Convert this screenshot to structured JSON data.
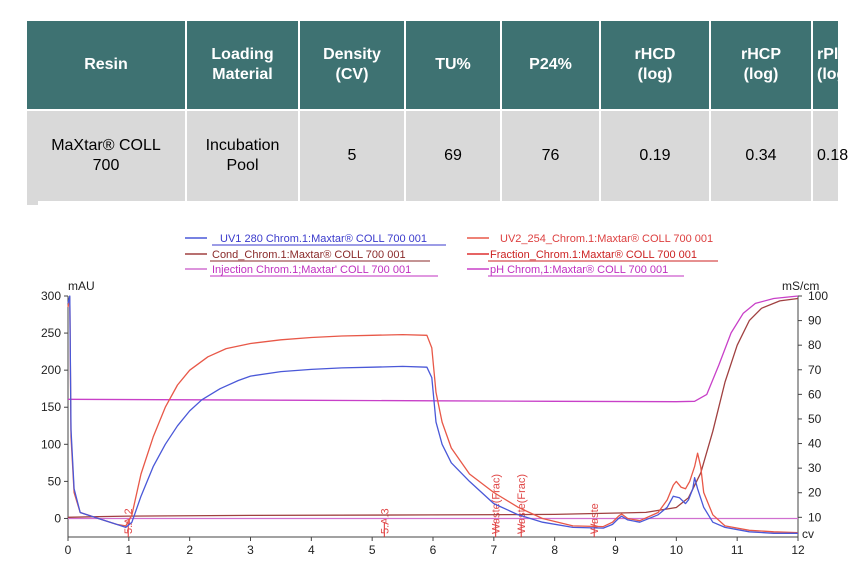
{
  "table": {
    "headers": [
      "Resin",
      "Loading Material",
      "Density (CV)",
      "TU%",
      "P24%",
      "rHCD (log)",
      "rHCP (log)",
      "rPlasmid (log)"
    ],
    "header_lines": [
      [
        "Resin"
      ],
      [
        "Loading",
        "Material"
      ],
      [
        "Density",
        "(CV)"
      ],
      [
        "TU%"
      ],
      [
        "P24%"
      ],
      [
        "rHCD",
        "(log)"
      ],
      [
        "rHCP",
        "(log)"
      ],
      [
        "rPlasmid",
        "(log)"
      ]
    ],
    "rows": [
      {
        "resin_lines": [
          "MaXtar® COLL",
          "700"
        ],
        "loading_lines": [
          "Incubation",
          "Pool"
        ],
        "density": "5",
        "tu": "69",
        "p24": "76",
        "rhcd": "0.19",
        "rhcp": "0.34",
        "rplasmid": "0.18"
      }
    ]
  },
  "chart_data": {
    "type": "line",
    "title": "",
    "xlabel": "cv",
    "ylabel_left": "mAU",
    "ylabel_right": "mS/cm",
    "xlim": [
      0,
      12
    ],
    "ylim_left": [
      -25,
      300
    ],
    "ylim_right": [
      2,
      100
    ],
    "x_ticks": [
      "0",
      "1",
      "2",
      "3",
      "4",
      "5",
      "6",
      "7",
      "8",
      "9",
      "10",
      "11",
      "12"
    ],
    "y_left_ticks": [
      "0",
      "50",
      "100",
      "150",
      "200",
      "250",
      "300"
    ],
    "y_right_ticks": [
      "10",
      "20",
      "30",
      "40",
      "50",
      "60",
      "70",
      "80",
      "90",
      "100"
    ],
    "legend_placement": "top",
    "series": [
      {
        "name": "UV1 280 Chrom.1:Maxtar® COLL 700 001",
        "color": "#4a58d8",
        "axis": "left",
        "points": [
          [
            0,
            290
          ],
          [
            0.03,
            300
          ],
          [
            0.05,
            120
          ],
          [
            0.1,
            40
          ],
          [
            0.2,
            8
          ],
          [
            0.5,
            0
          ],
          [
            0.8,
            -8
          ],
          [
            0.95,
            -12
          ],
          [
            1.05,
            -5
          ],
          [
            1.2,
            30
          ],
          [
            1.4,
            70
          ],
          [
            1.6,
            100
          ],
          [
            1.8,
            125
          ],
          [
            2.0,
            145
          ],
          [
            2.2,
            160
          ],
          [
            2.5,
            175
          ],
          [
            2.8,
            186
          ],
          [
            3.0,
            192
          ],
          [
            3.5,
            198
          ],
          [
            4.0,
            201
          ],
          [
            4.5,
            203
          ],
          [
            5.0,
            204
          ],
          [
            5.5,
            205
          ],
          [
            5.9,
            204
          ],
          [
            5.98,
            190
          ],
          [
            6.05,
            130
          ],
          [
            6.15,
            100
          ],
          [
            6.3,
            75
          ],
          [
            6.6,
            50
          ],
          [
            7.0,
            20
          ],
          [
            7.4,
            5
          ],
          [
            7.8,
            -5
          ],
          [
            8.3,
            -12
          ],
          [
            8.8,
            -13
          ],
          [
            8.95,
            -8
          ],
          [
            9.05,
            0
          ],
          [
            9.1,
            3
          ],
          [
            9.2,
            -2
          ],
          [
            9.4,
            -5
          ],
          [
            9.7,
            5
          ],
          [
            9.85,
            15
          ],
          [
            9.95,
            30
          ],
          [
            10.05,
            28
          ],
          [
            10.15,
            20
          ],
          [
            10.2,
            25
          ],
          [
            10.27,
            40
          ],
          [
            10.3,
            55
          ],
          [
            10.35,
            40
          ],
          [
            10.45,
            15
          ],
          [
            10.6,
            -5
          ],
          [
            10.8,
            -12
          ],
          [
            11.2,
            -18
          ],
          [
            11.6,
            -20
          ],
          [
            12,
            -20
          ]
        ]
      },
      {
        "name": "UV2_254_Chrom.1:Maxtar® COLL 700 001",
        "color": "#e85848",
        "axis": "left",
        "points": [
          [
            0,
            285
          ],
          [
            0.03,
            298
          ],
          [
            0.05,
            110
          ],
          [
            0.1,
            35
          ],
          [
            0.2,
            8
          ],
          [
            0.5,
            0
          ],
          [
            0.8,
            -8
          ],
          [
            0.95,
            -10
          ],
          [
            1.05,
            5
          ],
          [
            1.2,
            60
          ],
          [
            1.4,
            110
          ],
          [
            1.6,
            150
          ],
          [
            1.8,
            180
          ],
          [
            2.0,
            200
          ],
          [
            2.3,
            218
          ],
          [
            2.6,
            229
          ],
          [
            3.0,
            236
          ],
          [
            3.5,
            241
          ],
          [
            4.0,
            244
          ],
          [
            4.5,
            246
          ],
          [
            5.0,
            247
          ],
          [
            5.5,
            248
          ],
          [
            5.9,
            247
          ],
          [
            5.98,
            230
          ],
          [
            6.05,
            170
          ],
          [
            6.15,
            130
          ],
          [
            6.3,
            95
          ],
          [
            6.6,
            60
          ],
          [
            7.0,
            35
          ],
          [
            7.4,
            15
          ],
          [
            7.8,
            0
          ],
          [
            8.3,
            -10
          ],
          [
            8.8,
            -11
          ],
          [
            8.95,
            -5
          ],
          [
            9.05,
            3
          ],
          [
            9.1,
            6
          ],
          [
            9.2,
            0
          ],
          [
            9.4,
            -3
          ],
          [
            9.7,
            8
          ],
          [
            9.85,
            25
          ],
          [
            9.95,
            45
          ],
          [
            10.0,
            50
          ],
          [
            10.08,
            42
          ],
          [
            10.15,
            40
          ],
          [
            10.22,
            50
          ],
          [
            10.3,
            70
          ],
          [
            10.35,
            88
          ],
          [
            10.4,
            70
          ],
          [
            10.45,
            35
          ],
          [
            10.6,
            5
          ],
          [
            10.8,
            -10
          ],
          [
            11.2,
            -16
          ],
          [
            11.6,
            -18
          ],
          [
            12,
            -19
          ]
        ]
      },
      {
        "name": "Cond_Chrom.1:Maxtar® COLL 700 001",
        "color": "#a04040",
        "axis": "right",
        "points": [
          [
            0,
            10
          ],
          [
            12,
            10
          ],
          [
            0.5,
            10.3
          ],
          [
            1,
            10.5
          ],
          [
            3,
            10.8
          ],
          [
            6,
            11
          ],
          [
            8,
            11.2
          ],
          [
            9.5,
            12
          ],
          [
            10,
            14
          ],
          [
            10.2,
            18
          ],
          [
            10.4,
            28
          ],
          [
            10.6,
            45
          ],
          [
            10.8,
            65
          ],
          [
            11.0,
            80
          ],
          [
            11.2,
            90
          ],
          [
            11.4,
            95
          ],
          [
            11.7,
            98
          ],
          [
            12,
            99
          ]
        ]
      },
      {
        "name": "Fraction_Chrom.1:Maxtar® COLL 700 001",
        "color": "#dd3030",
        "axis": "left",
        "points": [
          [
            0.99,
            -25
          ],
          [
            0.99,
            -5
          ],
          [
            5.2,
            -25
          ],
          [
            5.2,
            -5
          ],
          [
            7.03,
            -25
          ],
          [
            7.03,
            -5
          ],
          [
            7.45,
            -25
          ],
          [
            7.45,
            -5
          ],
          [
            8.65,
            -25
          ],
          [
            8.65,
            -5
          ]
        ]
      },
      {
        "name": "Injection Chrom.1;Maxtar' COLL 700 001",
        "color": "#d070d0",
        "axis": "left",
        "points": [
          [
            0,
            0
          ],
          [
            12,
            0
          ]
        ]
      },
      {
        "name": "pH Chrom,1:Maxtar® COLL 700 001",
        "color": "#c840c8",
        "axis": "right",
        "points": [
          [
            0,
            58
          ],
          [
            2,
            57.8
          ],
          [
            4,
            57.6
          ],
          [
            6,
            57.4
          ],
          [
            8,
            57.2
          ],
          [
            10,
            57
          ],
          [
            10.3,
            57.2
          ],
          [
            10.5,
            60
          ],
          [
            10.7,
            72
          ],
          [
            10.9,
            85
          ],
          [
            11.1,
            93
          ],
          [
            11.3,
            97
          ],
          [
            11.6,
            99
          ],
          [
            12,
            100
          ]
        ]
      }
    ],
    "fraction_marks": [
      {
        "x": 0.99,
        "label": "5.A.2"
      },
      {
        "x": 5.2,
        "label": "5.A.3"
      },
      {
        "x": 7.03,
        "label": "Waste(Frac)"
      },
      {
        "x": 7.45,
        "label": "Waste(Frac)"
      },
      {
        "x": 8.65,
        "label": "Waste"
      }
    ]
  }
}
